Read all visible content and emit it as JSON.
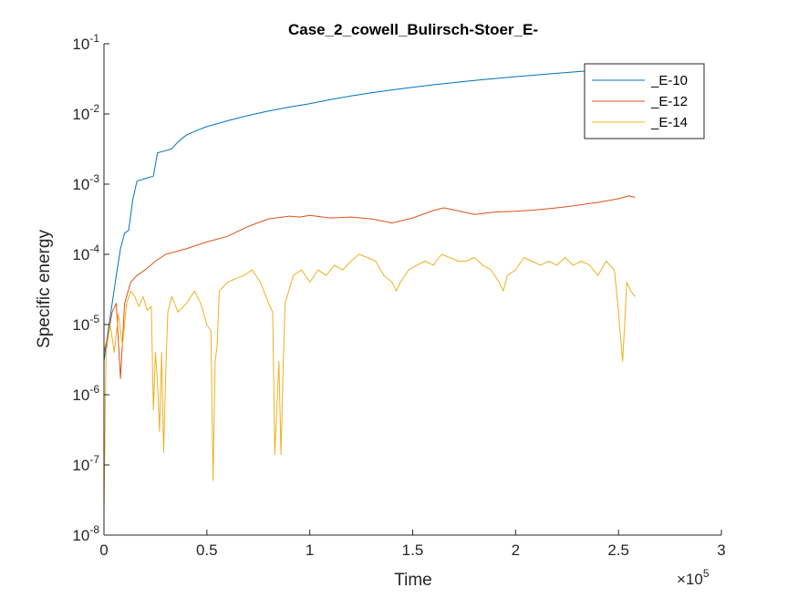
{
  "chart_data": {
    "type": "line",
    "title": "Case_2_cowell_Bulirsch-Stoer_E-",
    "xlabel": "Time",
    "ylabel": "Specific energy",
    "xlim": [
      0,
      300000
    ],
    "ylim": [
      1e-08,
      0.1
    ],
    "yscale": "log",
    "x_multiplier_label": "×10",
    "x_multiplier_exponent": "5",
    "x_ticks": [
      {
        "value": 0,
        "label": "0"
      },
      {
        "value": 50000,
        "label": "0.5"
      },
      {
        "value": 100000,
        "label": "1"
      },
      {
        "value": 150000,
        "label": "1.5"
      },
      {
        "value": 200000,
        "label": "2"
      },
      {
        "value": 250000,
        "label": "2.5"
      },
      {
        "value": 300000,
        "label": "3"
      }
    ],
    "y_ticks": [
      {
        "value": 1e-08,
        "base": "10",
        "exp": "-8"
      },
      {
        "value": 1e-07,
        "base": "10",
        "exp": "-7"
      },
      {
        "value": 1e-06,
        "base": "10",
        "exp": "-6"
      },
      {
        "value": 1e-05,
        "base": "10",
        "exp": "-5"
      },
      {
        "value": 0.0001,
        "base": "10",
        "exp": "-4"
      },
      {
        "value": 0.001,
        "base": "10",
        "exp": "-3"
      },
      {
        "value": 0.01,
        "base": "10",
        "exp": "-2"
      },
      {
        "value": 0.1,
        "base": "10",
        "exp": "-1"
      }
    ],
    "legend_position": "top-right",
    "grid": false,
    "series": [
      {
        "name": "_E-10",
        "color": "#0072BD",
        "points": [
          [
            0,
            3e-06
          ],
          [
            2000,
            8e-06
          ],
          [
            4000,
            2e-05
          ],
          [
            6000,
            5e-05
          ],
          [
            8000,
            0.00012
          ],
          [
            10000,
            0.0002
          ],
          [
            12000,
            0.00022
          ],
          [
            14000,
            0.0006
          ],
          [
            16000,
            0.0011
          ],
          [
            20000,
            0.0012
          ],
          [
            24000,
            0.0013
          ],
          [
            26000,
            0.0028
          ],
          [
            30000,
            0.003
          ],
          [
            33000,
            0.0032
          ],
          [
            36000,
            0.004
          ],
          [
            40000,
            0.005
          ],
          [
            45000,
            0.0058
          ],
          [
            50000,
            0.0066
          ],
          [
            60000,
            0.008
          ],
          [
            70000,
            0.0095
          ],
          [
            80000,
            0.011
          ],
          [
            90000,
            0.0125
          ],
          [
            100000,
            0.014
          ],
          [
            110000,
            0.016
          ],
          [
            120000,
            0.018
          ],
          [
            130000,
            0.02
          ],
          [
            140000,
            0.022
          ],
          [
            150000,
            0.024
          ],
          [
            160000,
            0.026
          ],
          [
            170000,
            0.028
          ],
          [
            180000,
            0.03
          ],
          [
            190000,
            0.032
          ],
          [
            200000,
            0.034
          ],
          [
            210000,
            0.036
          ],
          [
            220000,
            0.038
          ],
          [
            230000,
            0.04
          ],
          [
            240000,
            0.042
          ],
          [
            250000,
            0.044
          ],
          [
            258000,
            0.045
          ]
        ]
      },
      {
        "name": "_E-12",
        "color": "#D95319",
        "points": [
          [
            0,
            4e-06
          ],
          [
            2000,
            7e-06
          ],
          [
            4000,
            1.5e-05
          ],
          [
            6000,
            2e-05
          ],
          [
            8000,
            1.7e-06
          ],
          [
            10000,
            2e-05
          ],
          [
            13000,
            4e-05
          ],
          [
            16000,
            5e-05
          ],
          [
            20000,
            6e-05
          ],
          [
            25000,
            8e-05
          ],
          [
            30000,
            0.0001
          ],
          [
            40000,
            0.00012
          ],
          [
            50000,
            0.00015
          ],
          [
            60000,
            0.00018
          ],
          [
            70000,
            0.00025
          ],
          [
            80000,
            0.00032
          ],
          [
            90000,
            0.00035
          ],
          [
            95000,
            0.00034
          ],
          [
            100000,
            0.00036
          ],
          [
            110000,
            0.00033
          ],
          [
            120000,
            0.00034
          ],
          [
            130000,
            0.00032
          ],
          [
            140000,
            0.00028
          ],
          [
            150000,
            0.00033
          ],
          [
            160000,
            0.00042
          ],
          [
            165000,
            0.00046
          ],
          [
            170000,
            0.00043
          ],
          [
            180000,
            0.00037
          ],
          [
            190000,
            0.0004
          ],
          [
            200000,
            0.00041
          ],
          [
            210000,
            0.00043
          ],
          [
            220000,
            0.00046
          ],
          [
            230000,
            0.0005
          ],
          [
            240000,
            0.00055
          ],
          [
            250000,
            0.00062
          ],
          [
            255000,
            0.00068
          ],
          [
            258000,
            0.00065
          ]
        ]
      },
      {
        "name": "_E-14",
        "color": "#EDB120",
        "points": [
          [
            0,
            2e-08
          ],
          [
            1000,
            4e-06
          ],
          [
            3000,
            1e-05
          ],
          [
            5000,
            4e-06
          ],
          [
            7000,
            1.4e-05
          ],
          [
            9000,
            5e-06
          ],
          [
            11000,
            2e-05
          ],
          [
            13000,
            3e-05
          ],
          [
            15000,
            2.5e-05
          ],
          [
            17000,
            1.8e-05
          ],
          [
            19000,
            2.5e-05
          ],
          [
            21000,
            1.6e-05
          ],
          [
            23000,
            1.8e-05
          ],
          [
            24000,
            6e-07
          ],
          [
            25000,
            4e-06
          ],
          [
            26000,
            1.5e-06
          ],
          [
            27000,
            3e-07
          ],
          [
            28000,
            4e-06
          ],
          [
            29000,
            1.5e-07
          ],
          [
            30000,
            2e-06
          ],
          [
            31000,
            1.5e-05
          ],
          [
            33000,
            2.5e-05
          ],
          [
            36000,
            1.5e-05
          ],
          [
            40000,
            2e-05
          ],
          [
            44000,
            3e-05
          ],
          [
            47000,
            2e-05
          ],
          [
            50000,
            1e-05
          ],
          [
            52000,
            8e-06
          ],
          [
            53000,
            6e-08
          ],
          [
            54000,
            3e-06
          ],
          [
            55000,
            5e-06
          ],
          [
            56000,
            3e-05
          ],
          [
            60000,
            4e-05
          ],
          [
            64000,
            4.5e-05
          ],
          [
            68000,
            5e-05
          ],
          [
            72000,
            6e-05
          ],
          [
            76000,
            4e-05
          ],
          [
            80000,
            2e-05
          ],
          [
            82000,
            1.5e-05
          ],
          [
            83000,
            1.4e-07
          ],
          [
            85000,
            3e-06
          ],
          [
            86000,
            1.4e-07
          ],
          [
            87000,
            2e-06
          ],
          [
            88000,
            2e-05
          ],
          [
            92000,
            5e-05
          ],
          [
            96000,
            6e-05
          ],
          [
            100000,
            4e-05
          ],
          [
            104000,
            6e-05
          ],
          [
            108000,
            5e-05
          ],
          [
            112000,
            7e-05
          ],
          [
            116000,
            6e-05
          ],
          [
            120000,
            8e-05
          ],
          [
            124000,
            0.0001
          ],
          [
            128000,
            9e-05
          ],
          [
            132000,
            8e-05
          ],
          [
            136000,
            5e-05
          ],
          [
            140000,
            4e-05
          ],
          [
            142000,
            3e-05
          ],
          [
            144000,
            4e-05
          ],
          [
            148000,
            6e-05
          ],
          [
            152000,
            7e-05
          ],
          [
            156000,
            8e-05
          ],
          [
            160000,
            7e-05
          ],
          [
            164000,
            0.0001
          ],
          [
            168000,
            9e-05
          ],
          [
            172000,
            8e-05
          ],
          [
            176000,
            8e-05
          ],
          [
            180000,
            9e-05
          ],
          [
            184000,
            7e-05
          ],
          [
            188000,
            6e-05
          ],
          [
            192000,
            4e-05
          ],
          [
            194000,
            3e-05
          ],
          [
            196000,
            5e-05
          ],
          [
            200000,
            6e-05
          ],
          [
            204000,
            9e-05
          ],
          [
            208000,
            8e-05
          ],
          [
            212000,
            7e-05
          ],
          [
            216000,
            8e-05
          ],
          [
            220000,
            7e-05
          ],
          [
            224000,
            9e-05
          ],
          [
            228000,
            7e-05
          ],
          [
            232000,
            8e-05
          ],
          [
            236000,
            7e-05
          ],
          [
            240000,
            5e-05
          ],
          [
            244000,
            8e-05
          ],
          [
            248000,
            6e-05
          ],
          [
            250000,
            1.5e-05
          ],
          [
            252000,
            3e-06
          ],
          [
            253000,
            1e-05
          ],
          [
            254000,
            4e-05
          ],
          [
            256000,
            3e-05
          ],
          [
            258000,
            2.5e-05
          ]
        ]
      }
    ]
  }
}
